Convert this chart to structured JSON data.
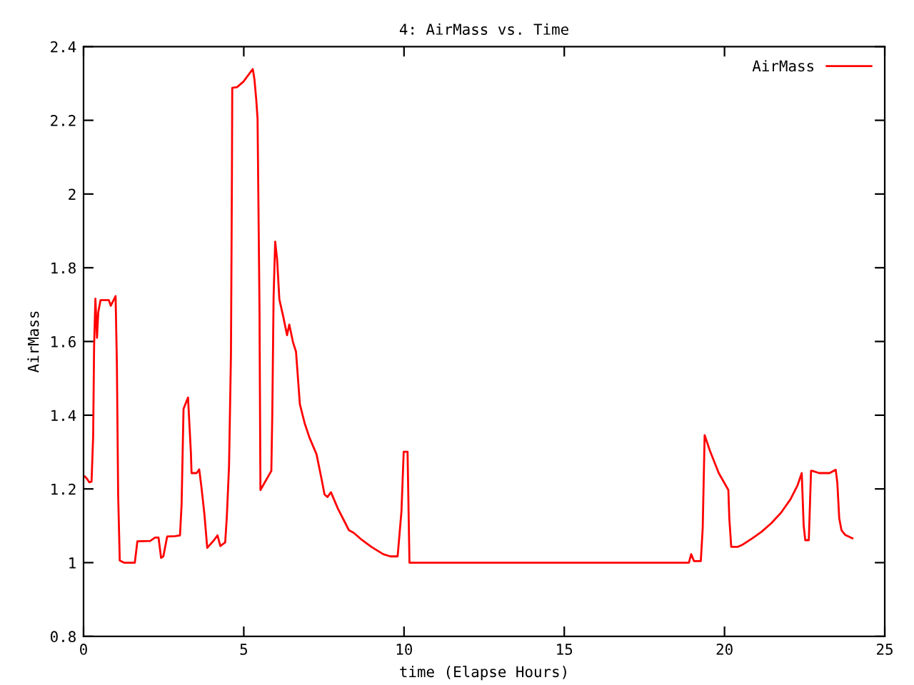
{
  "chart_data": {
    "type": "line",
    "title": "4: AirMass vs. Time",
    "xlabel": "time (Elapse Hours)",
    "ylabel": "AirMass",
    "xlim": [
      0,
      25
    ],
    "ylim": [
      0.8,
      2.4
    ],
    "xticks": [
      0,
      5,
      10,
      15,
      20,
      25
    ],
    "yticks": [
      0.8,
      1,
      1.2,
      1.4,
      1.6,
      1.8,
      2,
      2.2,
      2.4
    ],
    "grid": false,
    "legend": "top right",
    "marker": "none",
    "line_style": "solid",
    "series": [
      {
        "name": "AirMass",
        "color": "#ff0000",
        "x": [
          0.04,
          0.12,
          0.18,
          0.25,
          0.3,
          0.33,
          0.37,
          0.42,
          0.46,
          0.53,
          0.79,
          0.85,
          1.0,
          1.04,
          1.08,
          1.13,
          1.26,
          1.6,
          1.68,
          2.08,
          2.23,
          2.34,
          2.42,
          2.49,
          2.61,
          2.86,
          3.01,
          3.06,
          3.12,
          3.26,
          3.35,
          3.37,
          3.53,
          3.61,
          3.68,
          3.77,
          3.86,
          3.95,
          4.08,
          4.18,
          4.27,
          4.42,
          4.47,
          4.54,
          4.6,
          4.63,
          4.64,
          4.79,
          4.99,
          5.28,
          5.33,
          5.39,
          5.43,
          5.49,
          5.52,
          5.86,
          5.89,
          5.93,
          5.98,
          6.04,
          6.11,
          6.23,
          6.35,
          6.42,
          6.53,
          6.63,
          6.75,
          6.9,
          7.05,
          7.27,
          7.42,
          7.52,
          7.61,
          7.72,
          7.94,
          8.17,
          8.28,
          8.43,
          8.68,
          8.98,
          9.35,
          9.57,
          9.8,
          9.92,
          9.99,
          10.11,
          10.17,
          18.89,
          18.96,
          19.05,
          19.26,
          19.32,
          19.38,
          19.53,
          19.82,
          20.12,
          20.15,
          20.21,
          20.42,
          20.57,
          20.87,
          21.16,
          21.46,
          21.76,
          22.06,
          22.28,
          22.41,
          22.47,
          22.52,
          22.63,
          22.7,
          22.74,
          22.95,
          23.28,
          23.47,
          23.52,
          23.58,
          23.65,
          23.77,
          23.99
        ],
        "values": [
          1.234,
          1.226,
          1.218,
          1.22,
          1.343,
          1.59,
          1.716,
          1.61,
          1.68,
          1.712,
          1.712,
          1.697,
          1.723,
          1.543,
          1.185,
          1.006,
          1.0,
          1.0,
          1.058,
          1.059,
          1.068,
          1.068,
          1.013,
          1.017,
          1.071,
          1.072,
          1.074,
          1.159,
          1.417,
          1.448,
          1.298,
          1.243,
          1.243,
          1.253,
          1.204,
          1.133,
          1.04,
          1.049,
          1.062,
          1.074,
          1.045,
          1.055,
          1.123,
          1.262,
          1.565,
          2.049,
          2.288,
          2.29,
          2.305,
          2.339,
          2.313,
          2.255,
          2.204,
          1.694,
          1.197,
          1.249,
          1.406,
          1.72,
          1.871,
          1.823,
          1.714,
          1.668,
          1.617,
          1.646,
          1.6,
          1.572,
          1.43,
          1.378,
          1.339,
          1.294,
          1.23,
          1.185,
          1.178,
          1.191,
          1.146,
          1.107,
          1.088,
          1.081,
          1.062,
          1.043,
          1.023,
          1.017,
          1.017,
          1.139,
          1.301,
          1.301,
          1.0,
          1.0,
          1.023,
          1.004,
          1.004,
          1.094,
          1.346,
          1.307,
          1.243,
          1.197,
          1.12,
          1.043,
          1.043,
          1.049,
          1.066,
          1.084,
          1.107,
          1.135,
          1.172,
          1.21,
          1.243,
          1.101,
          1.061,
          1.061,
          1.249,
          1.249,
          1.243,
          1.243,
          1.252,
          1.217,
          1.12,
          1.088,
          1.075,
          1.066
        ]
      }
    ]
  }
}
